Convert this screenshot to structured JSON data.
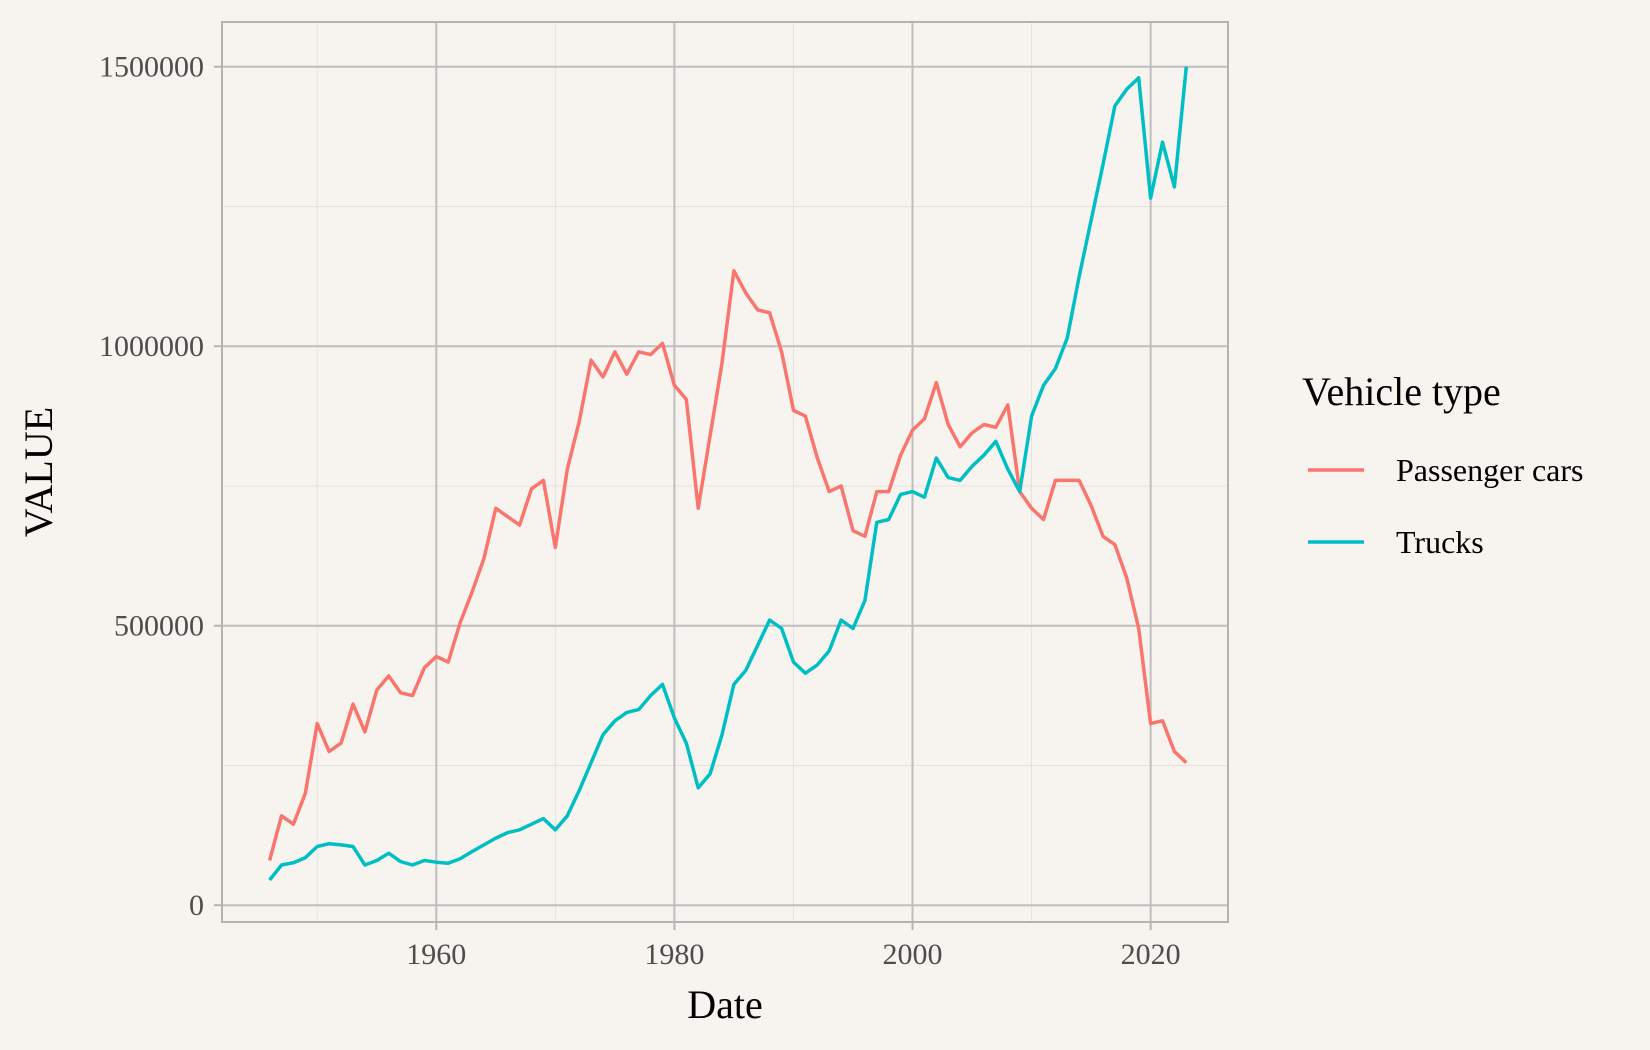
{
  "chart_data": {
    "type": "line",
    "title": "",
    "xlabel": "Date",
    "ylabel": "VALUE",
    "xlim": [
      1942,
      2026.5
    ],
    "ylim": [
      -30000,
      1580000
    ],
    "x_ticks": [
      1960,
      1980,
      2000,
      2020
    ],
    "x_tick_labels": [
      "1960",
      "1980",
      "2000",
      "2020"
    ],
    "y_ticks": [
      0,
      500000,
      1000000,
      1500000
    ],
    "y_tick_labels": [
      "0",
      "500000",
      "1000000",
      "1500000"
    ],
    "grid": true,
    "legend": {
      "title": "Vehicle type",
      "position": "right"
    },
    "colors": {
      "background": "#f7f4f0",
      "grid_major": "#bebebe",
      "grid_minor": "#e4e2df",
      "panel_border": "#b3b3b3"
    },
    "x": [
      1946,
      1947,
      1948,
      1949,
      1950,
      1951,
      1952,
      1953,
      1954,
      1955,
      1956,
      1957,
      1958,
      1959,
      1960,
      1961,
      1962,
      1963,
      1964,
      1965,
      1966,
      1967,
      1968,
      1969,
      1970,
      1971,
      1972,
      1973,
      1974,
      1975,
      1976,
      1977,
      1978,
      1979,
      1980,
      1981,
      1982,
      1983,
      1984,
      1985,
      1986,
      1987,
      1988,
      1989,
      1990,
      1991,
      1992,
      1993,
      1994,
      1995,
      1996,
      1997,
      1998,
      1999,
      2000,
      2001,
      2002,
      2003,
      2004,
      2005,
      2006,
      2007,
      2008,
      2009,
      2010,
      2011,
      2012,
      2013,
      2014,
      2015,
      2016,
      2017,
      2018,
      2019,
      2020,
      2021,
      2022,
      2023
    ],
    "series": [
      {
        "name": "Passenger cars",
        "color": "#f8766d",
        "values": [
          80000,
          160000,
          145000,
          200000,
          325000,
          275000,
          290000,
          360000,
          310000,
          385000,
          410000,
          380000,
          375000,
          425000,
          445000,
          435000,
          505000,
          560000,
          620000,
          710000,
          695000,
          680000,
          745000,
          760000,
          640000,
          780000,
          865000,
          975000,
          945000,
          990000,
          950000,
          990000,
          985000,
          1005000,
          930000,
          905000,
          710000,
          840000,
          970000,
          1135000,
          1095000,
          1065000,
          1060000,
          990000,
          885000,
          875000,
          800000,
          740000,
          750000,
          670000,
          660000,
          740000,
          740000,
          805000,
          850000,
          870000,
          935000,
          860000,
          820000,
          845000,
          860000,
          855000,
          895000,
          740000,
          710000,
          690000,
          760000,
          760000,
          760000,
          715000,
          660000,
          645000,
          585000,
          495000,
          325000,
          330000,
          275000,
          255000
        ]
      },
      {
        "name": "Trucks",
        "color": "#00bfc4",
        "values": [
          45000,
          72000,
          76000,
          85000,
          105000,
          110000,
          108000,
          105000,
          72000,
          80000,
          93000,
          78000,
          72000,
          80000,
          77000,
          75000,
          83000,
          96000,
          108000,
          120000,
          130000,
          135000,
          145000,
          155000,
          135000,
          160000,
          205000,
          255000,
          305000,
          330000,
          345000,
          350000,
          375000,
          395000,
          335000,
          290000,
          210000,
          235000,
          305000,
          395000,
          420000,
          465000,
          510000,
          495000,
          435000,
          415000,
          430000,
          455000,
          510000,
          495000,
          545000,
          685000,
          690000,
          735000,
          740000,
          730000,
          800000,
          765000,
          760000,
          785000,
          805000,
          830000,
          780000,
          740000,
          875000,
          930000,
          960000,
          1015000,
          1125000,
          1225000,
          1325000,
          1430000,
          1460000,
          1480000,
          1265000,
          1365000,
          1285000,
          1500000
        ]
      }
    ]
  }
}
